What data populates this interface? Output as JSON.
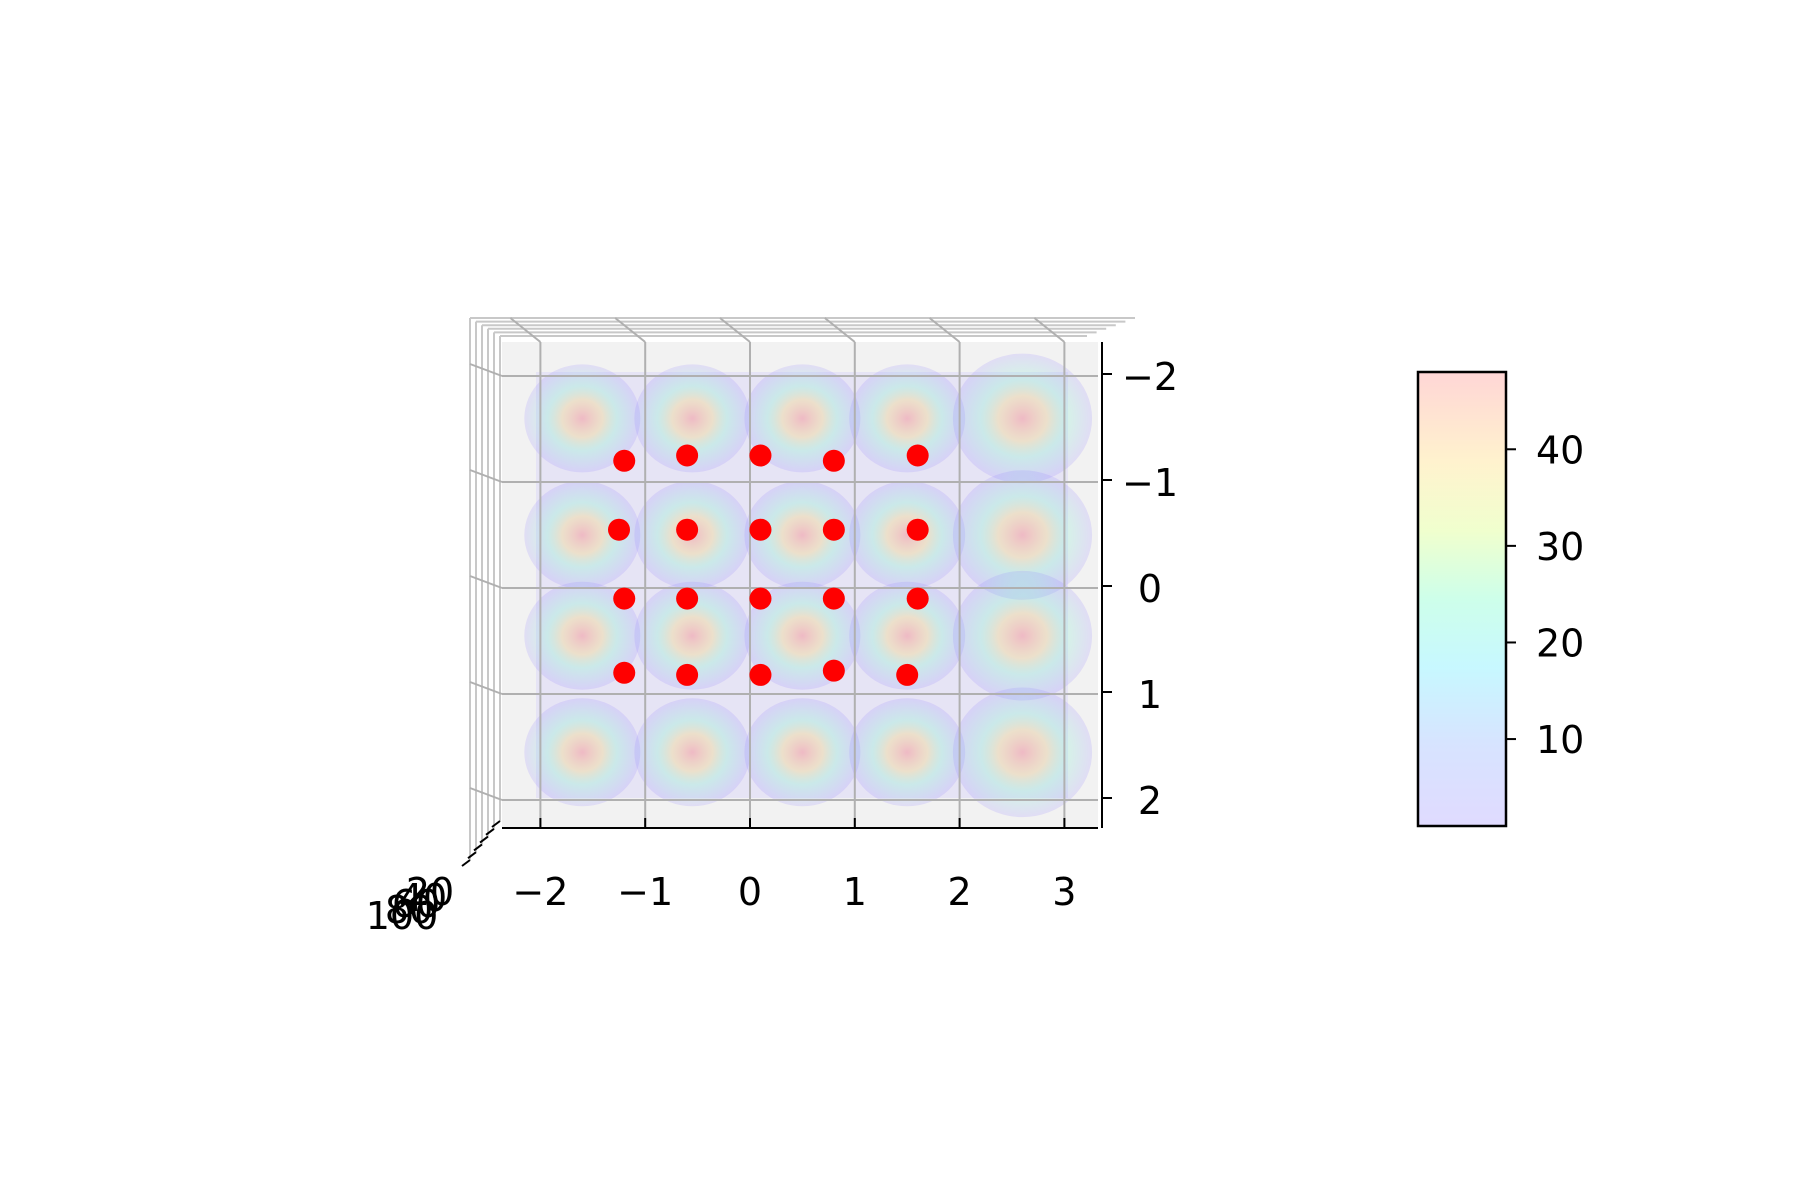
{
  "chart_data": {
    "type": "scatter",
    "title": "",
    "view": "3D axes viewed from top",
    "surface": {
      "kind": "periodic surface with alpha-blended rainbow colormap",
      "colormap": "rainbow"
    },
    "x_axis": {
      "label": "",
      "ticks": [
        -2,
        -1,
        0,
        1,
        2,
        3
      ],
      "tick_labels": [
        "−2",
        "−1",
        "0",
        "1",
        "2",
        "3"
      ],
      "range": [
        -2.5,
        3.5
      ]
    },
    "y_axis": {
      "label": "",
      "ticks": [
        -2,
        -1,
        0,
        1,
        2
      ],
      "tick_labels": [
        "−2",
        "−1",
        "0",
        "1",
        "2"
      ],
      "range": [
        -2.2,
        2.2
      ],
      "inverted": true
    },
    "z_axis": {
      "label": "",
      "tick_labels": [
        "20",
        "40",
        "60",
        "80",
        "100"
      ]
    },
    "colorbar": {
      "ticks": [
        10,
        20,
        30,
        40
      ],
      "tick_labels": [
        "10",
        "20",
        "30",
        "40"
      ],
      "range": [
        1,
        48
      ]
    },
    "series": [
      {
        "marker_color": "#ff0000",
        "points": [
          {
            "x": -1.2,
            "y": -1.2
          },
          {
            "x": -0.6,
            "y": -1.25
          },
          {
            "x": 0.1,
            "y": -1.25
          },
          {
            "x": 0.8,
            "y": -1.2
          },
          {
            "x": 1.6,
            "y": -1.25
          },
          {
            "x": -1.25,
            "y": -0.55
          },
          {
            "x": -0.6,
            "y": -0.55
          },
          {
            "x": 0.1,
            "y": -0.55
          },
          {
            "x": 0.8,
            "y": -0.55
          },
          {
            "x": 1.6,
            "y": -0.55
          },
          {
            "x": -1.2,
            "y": 0.1
          },
          {
            "x": -0.6,
            "y": 0.1
          },
          {
            "x": 0.1,
            "y": 0.1
          },
          {
            "x": 0.8,
            "y": 0.1
          },
          {
            "x": 1.6,
            "y": 0.1
          },
          {
            "x": -1.2,
            "y": 0.8
          },
          {
            "x": -0.6,
            "y": 0.82
          },
          {
            "x": 0.1,
            "y": 0.82
          },
          {
            "x": 0.8,
            "y": 0.78
          },
          {
            "x": 1.5,
            "y": 0.82
          }
        ]
      }
    ],
    "grid": true
  }
}
